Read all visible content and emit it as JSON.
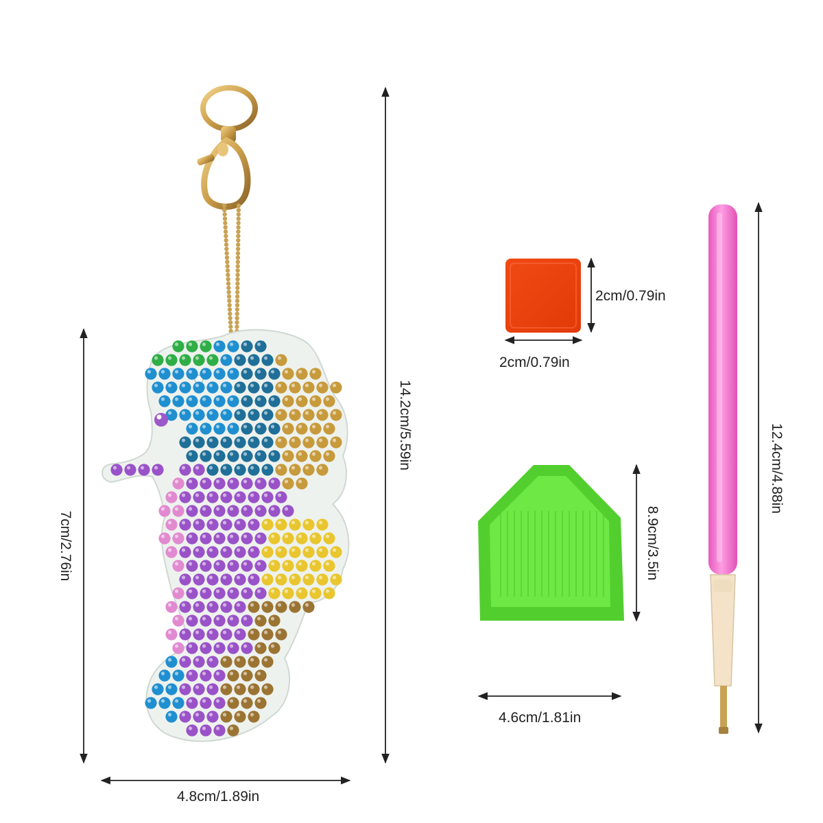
{
  "keychain": {
    "width_label": "4.8cm/1.89in",
    "body_height_label": "7cm/2.76in",
    "total_height_label": "14.2cm/5.59in"
  },
  "sticky_pad": {
    "width_label": "2cm/0.79in",
    "height_label": "2cm/0.79in",
    "color": "#ee3a0a"
  },
  "tray": {
    "width_label": "4.6cm/1.81in",
    "height_label": "8.9cm/3.5in",
    "color": "#5fe03a"
  },
  "pen": {
    "length_label": "12.4cm/4.88in",
    "color": "#f66fd0"
  },
  "colors": {
    "dimension_line": "#222222",
    "gold": "#d4a95a",
    "acrylic": "#f1f3f0"
  }
}
